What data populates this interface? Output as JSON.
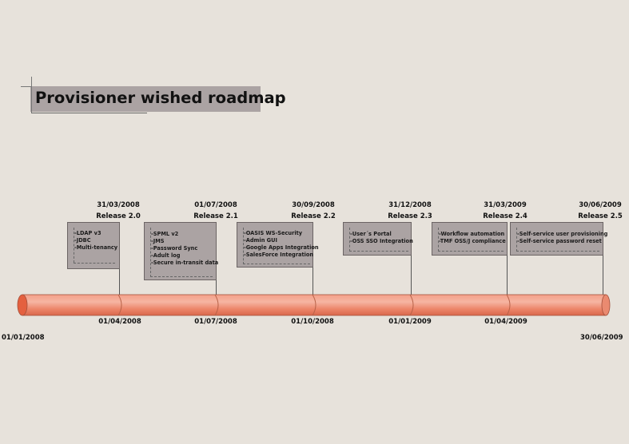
{
  "title": "Provisioner wished roadmap",
  "start_date": "01/01/2008",
  "end_date": "30/06/2009",
  "quarter_dates": [
    "01/04/2008",
    "01/07/2008",
    "01/10/2008",
    "01/01/2009",
    "01/04/2009"
  ],
  "colors": {
    "background": "#e7e2db",
    "note_fill": "#aba3a3",
    "timeline_fill": "#ef8c73",
    "timeline_highlight": "#f7b5a3",
    "timeline_end": "#e4603f"
  },
  "releases": [
    {
      "date": "31/03/2008",
      "label": "Release 2.0",
      "items": [
        "-LDAP v3",
        "-JDBC",
        "-Multi-tenancy"
      ]
    },
    {
      "date": "01/07/2008",
      "label": "Release 2.1",
      "items": [
        "-SPML v2",
        "-JMS",
        "-Password Sync",
        "-Adult log",
        "-Secure in-transit data"
      ]
    },
    {
      "date": "30/09/2008",
      "label": "Release 2.2",
      "items": [
        "-OASIS WS-Security",
        "-Admin GUI",
        "-Google Apps Integration",
        "-SalesForce Integration"
      ]
    },
    {
      "date": "31/12/2008",
      "label": "Release 2.3",
      "items": [
        "-User´s Portal",
        "-OSS SSO Integration"
      ]
    },
    {
      "date": "31/03/2009",
      "label": "Release 2.4",
      "items": [
        "-Workflow automation",
        "-TMF OSS/J compliance"
      ]
    },
    {
      "date": "30/06/2009",
      "label": "Release 2.5",
      "items": [
        "-Self-service user provisioning",
        "-Self-service password reset"
      ]
    }
  ]
}
